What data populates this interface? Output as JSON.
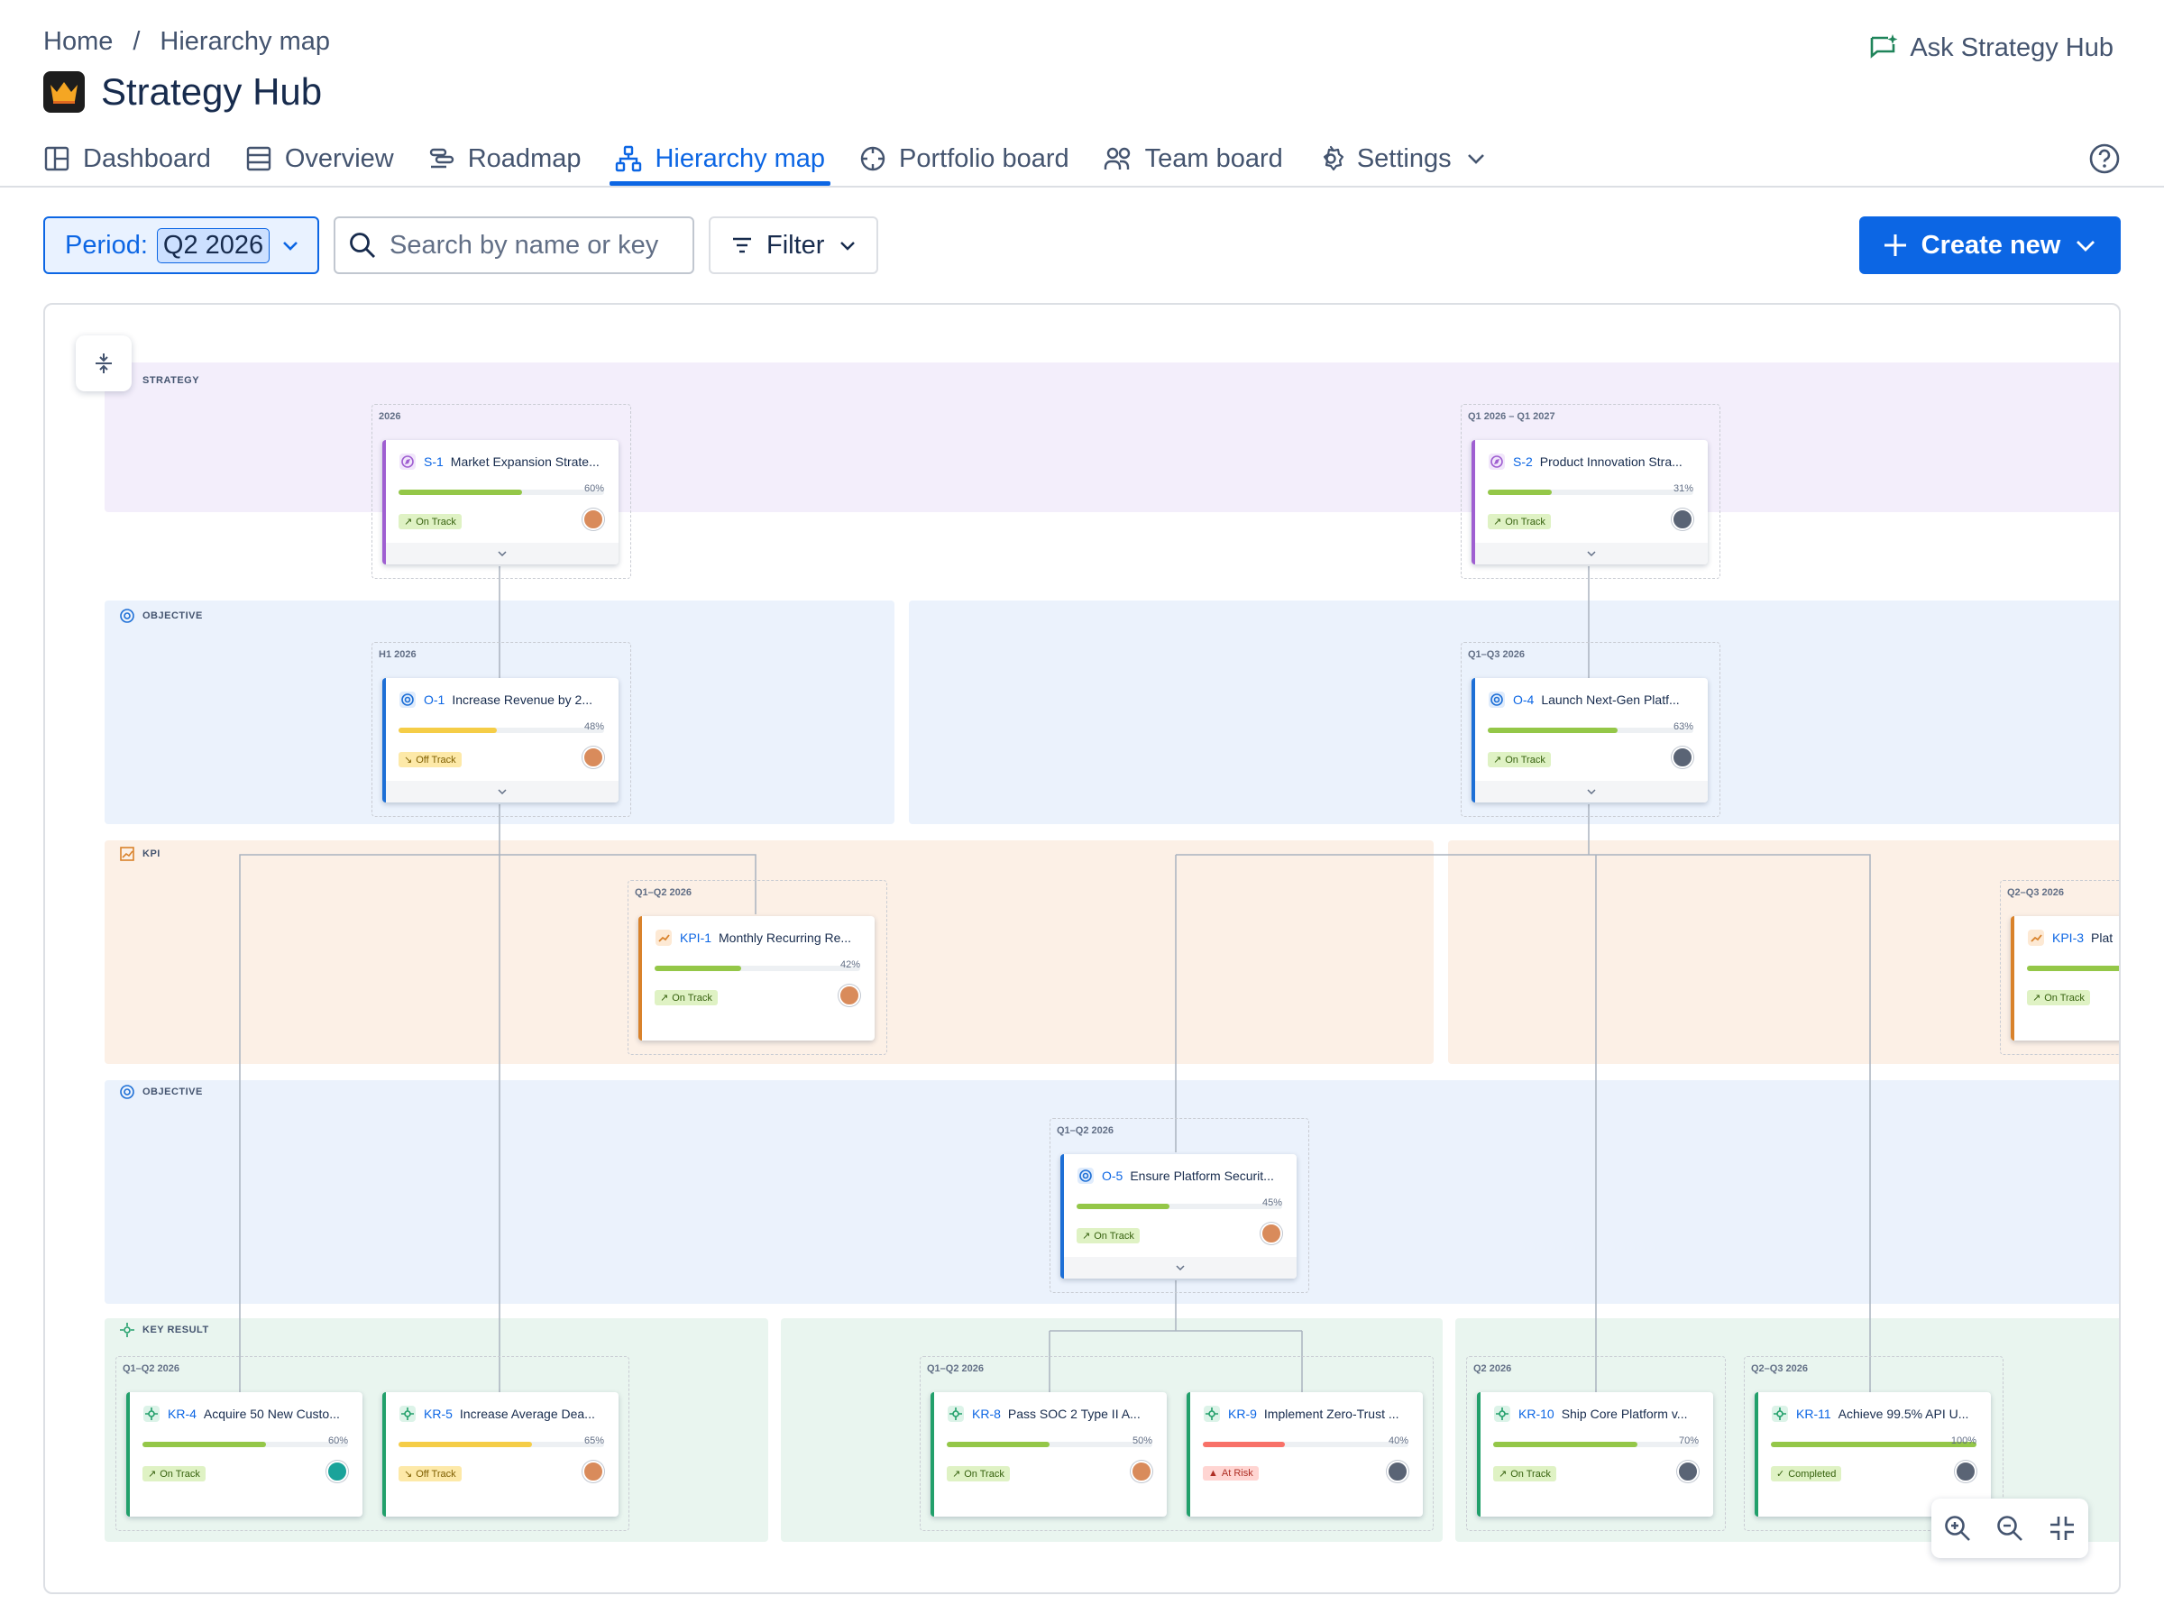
{
  "breadcrumb": {
    "home": "Home",
    "separator": "/",
    "current": "Hierarchy map"
  },
  "app": {
    "title": "Strategy Hub",
    "ask_label": "Ask Strategy Hub"
  },
  "tabs": [
    {
      "label": "Dashboard",
      "icon": "layout-icon"
    },
    {
      "label": "Overview",
      "icon": "list-icon"
    },
    {
      "label": "Roadmap",
      "icon": "roadmap-icon"
    },
    {
      "label": "Hierarchy map",
      "icon": "hierarchy-icon",
      "active": true
    },
    {
      "label": "Portfolio board",
      "icon": "portfolio-icon"
    },
    {
      "label": "Team board",
      "icon": "team-icon"
    },
    {
      "label": "Settings",
      "icon": "gear-icon"
    }
  ],
  "toolbar": {
    "period_label": "Period:",
    "period_value": "Q2 2026",
    "search_placeholder": "Search by name or key",
    "filter_label": "Filter",
    "create_label": "Create new"
  },
  "colors": {
    "accent": "#0c66e4",
    "strategy": "#9f5fd1",
    "objective": "#1d6fd6",
    "kpi": "#d9822b",
    "key_result": "#22a06b",
    "progress_green": "#94c748",
    "progress_yellow": "#f5cd47",
    "progress_red": "#f87168"
  },
  "bands": {
    "strategy": "STRATEGY",
    "objective1": "OBJECTIVE",
    "kpi": "KPI",
    "objective2": "OBJECTIVE",
    "key_result": "KEY RESULT"
  },
  "groups": {
    "g_s1": "2026",
    "g_s2": "Q1 2026 – Q1 2027",
    "g_o1": "H1 2026",
    "g_o4": "Q1–Q3 2026",
    "g_kpi1": "Q1–Q2 2026",
    "g_kpi3": "Q2–Q3 2026",
    "g_o5": "Q1–Q2 2026",
    "g_kr45": "Q1–Q2 2026",
    "g_kr89": "Q1–Q2 2026",
    "g_kr10": "Q2 2026",
    "g_kr11": "Q2–Q3 2026"
  },
  "cards": {
    "s1": {
      "key": "S-1",
      "name": "Market Expansion Strate...",
      "progress": 60,
      "pct": "60%",
      "status": "On Track"
    },
    "s2": {
      "key": "S-2",
      "name": "Product Innovation Stra...",
      "progress": 31,
      "pct": "31%",
      "status": "On Track"
    },
    "o1": {
      "key": "O-1",
      "name": "Increase Revenue by 2...",
      "progress": 48,
      "pct": "48%",
      "status": "Off Track"
    },
    "o4": {
      "key": "O-4",
      "name": "Launch Next-Gen Platf...",
      "progress": 63,
      "pct": "63%",
      "status": "On Track"
    },
    "kpi1": {
      "key": "KPI-1",
      "name": "Monthly Recurring Re...",
      "progress": 42,
      "pct": "42%",
      "status": "On Track"
    },
    "kpi3": {
      "key": "KPI-3",
      "name": "Plat",
      "progress": 55,
      "status": "On Track"
    },
    "o5": {
      "key": "O-5",
      "name": "Ensure Platform Securit...",
      "progress": 45,
      "pct": "45%",
      "status": "On Track"
    },
    "kr4": {
      "key": "KR-4",
      "name": "Acquire 50 New Custo...",
      "progress": 60,
      "pct": "60%",
      "status": "On Track"
    },
    "kr5": {
      "key": "KR-5",
      "name": "Increase Average Dea...",
      "progress": 65,
      "pct": "65%",
      "status": "Off Track"
    },
    "kr8": {
      "key": "KR-8",
      "name": "Pass SOC 2 Type II A...",
      "progress": 50,
      "pct": "50%",
      "status": "On Track"
    },
    "kr9": {
      "key": "KR-9",
      "name": "Implement Zero-Trust ...",
      "progress": 40,
      "pct": "40%",
      "status": "At Risk"
    },
    "kr10": {
      "key": "KR-10",
      "name": "Ship Core Platform v...",
      "progress": 70,
      "pct": "70%",
      "status": "On Track"
    },
    "kr11": {
      "key": "KR-11",
      "name": "Achieve 99.5% API U...",
      "progress": 100,
      "pct": "100%",
      "status": "Completed"
    }
  }
}
